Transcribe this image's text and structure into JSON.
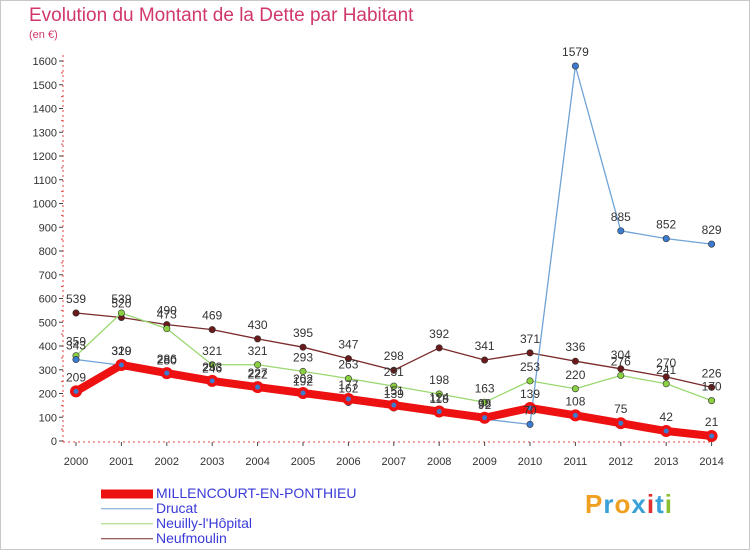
{
  "header": {
    "title": "Evolution du Montant de la Dette par Habitant",
    "subtitle": "(en €)"
  },
  "logo": {
    "letters": [
      "P",
      "r",
      "o",
      "x",
      "i",
      "t",
      "i"
    ],
    "colors": [
      "#f0a020",
      "#3aa0d8",
      "#f0a020",
      "#3aa0d8",
      "#e03030",
      "#3aa0d8",
      "#8ac030"
    ]
  },
  "chart_data": {
    "type": "line",
    "title": "Evolution du Montant de la Dette par Habitant",
    "ylabel": "(en €)",
    "xlabel": "",
    "x": [
      "2000",
      "2001",
      "2002",
      "2003",
      "2004",
      "2005",
      "2006",
      "2007",
      "2008",
      "2009",
      "2010",
      "2011",
      "2012",
      "2013",
      "2014"
    ],
    "ylim": [
      0,
      1600
    ],
    "yticks": [
      0,
      100,
      200,
      300,
      400,
      500,
      600,
      700,
      800,
      900,
      1000,
      1100,
      1200,
      1300,
      1400,
      1500,
      1600
    ],
    "grid": false,
    "legend_position": "bottom",
    "series": [
      {
        "name": "MILLENCOURT-EN-PONTHIEU",
        "color": "#ee1111",
        "marker_color": "#3b7bd0",
        "thick": true,
        "values": [
          209,
          320,
          286,
          253,
          227,
          202,
          177,
          151,
          124,
          98,
          139,
          108,
          75,
          42,
          21
        ]
      },
      {
        "name": "Drucat",
        "color": "#6fa3d6",
        "marker_color": "#3b7bd0",
        "thick": false,
        "values": [
          343,
          319,
          280,
          246,
          222,
          192,
          162,
          139,
          118,
          92,
          70,
          1579,
          885,
          852,
          829
        ]
      },
      {
        "name": "Neuilly-l'Hôpital",
        "color": "#9ad870",
        "marker_color": "#8ad040",
        "thick": false,
        "values": [
          359,
          539,
          473,
          321,
          321,
          293,
          263,
          231,
          198,
          163,
          253,
          220,
          276,
          241,
          170
        ]
      },
      {
        "name": "Neufmoulin",
        "color": "#7a2a2a",
        "marker_color": "#6a1a1a",
        "thick": false,
        "values": [
          539,
          520,
          490,
          469,
          430,
          395,
          347,
          298,
          392,
          341,
          371,
          336,
          304,
          270,
          226
        ]
      }
    ],
    "data_labels": [
      {
        "series": 0,
        "index": 0,
        "text": "209"
      },
      {
        "series": 0,
        "index": 1,
        "text": "320"
      },
      {
        "series": 0,
        "index": 2,
        "text": "286"
      },
      {
        "series": 0,
        "index": 3,
        "text": "253"
      },
      {
        "series": 0,
        "index": 4,
        "text": "227"
      },
      {
        "series": 0,
        "index": 5,
        "text": "202"
      },
      {
        "series": 0,
        "index": 6,
        "text": "177"
      },
      {
        "series": 0,
        "index": 7,
        "text": "151"
      },
      {
        "series": 0,
        "index": 8,
        "text": "124"
      },
      {
        "series": 0,
        "index": 9,
        "text": "98"
      },
      {
        "series": 0,
        "index": 10,
        "text": "139"
      },
      {
        "series": 0,
        "index": 11,
        "text": "108"
      },
      {
        "series": 0,
        "index": 12,
        "text": "75"
      },
      {
        "series": 0,
        "index": 13,
        "text": "42"
      },
      {
        "series": 0,
        "index": 14,
        "text": "21"
      },
      {
        "series": 1,
        "index": 0,
        "text": "343"
      },
      {
        "series": 1,
        "index": 1,
        "text": "319"
      },
      {
        "series": 1,
        "index": 2,
        "text": "280"
      },
      {
        "series": 1,
        "index": 3,
        "text": "246"
      },
      {
        "series": 1,
        "index": 4,
        "text": "222"
      },
      {
        "series": 1,
        "index": 5,
        "text": "192"
      },
      {
        "series": 1,
        "index": 6,
        "text": "162"
      },
      {
        "series": 1,
        "index": 7,
        "text": "139"
      },
      {
        "series": 1,
        "index": 8,
        "text": "118"
      },
      {
        "series": 1,
        "index": 9,
        "text": "92"
      },
      {
        "series": 1,
        "index": 10,
        "text": "70"
      },
      {
        "series": 1,
        "index": 11,
        "text": "1579"
      },
      {
        "series": 1,
        "index": 12,
        "text": "885"
      },
      {
        "series": 1,
        "index": 13,
        "text": "852"
      },
      {
        "series": 1,
        "index": 14,
        "text": "829"
      },
      {
        "series": 2,
        "index": 0,
        "text": "359"
      },
      {
        "series": 2,
        "index": 1,
        "text": "539"
      },
      {
        "series": 2,
        "index": 2,
        "text": "473"
      },
      {
        "series": 2,
        "index": 3,
        "text": "321"
      },
      {
        "series": 2,
        "index": 4,
        "text": "321"
      },
      {
        "series": 2,
        "index": 5,
        "text": "293"
      },
      {
        "series": 2,
        "index": 6,
        "text": "263"
      },
      {
        "series": 2,
        "index": 7,
        "text": "231"
      },
      {
        "series": 2,
        "index": 8,
        "text": "198"
      },
      {
        "series": 2,
        "index": 9,
        "text": "163"
      },
      {
        "series": 2,
        "index": 10,
        "text": "253"
      },
      {
        "series": 2,
        "index": 11,
        "text": "220"
      },
      {
        "series": 2,
        "index": 12,
        "text": "276"
      },
      {
        "series": 2,
        "index": 13,
        "text": "241"
      },
      {
        "series": 2,
        "index": 14,
        "text": "170"
      },
      {
        "series": 3,
        "index": 0,
        "text": "539"
      },
      {
        "series": 3,
        "index": 1,
        "text": "520"
      },
      {
        "series": 3,
        "index": 2,
        "text": "490"
      },
      {
        "series": 3,
        "index": 3,
        "text": "469"
      },
      {
        "series": 3,
        "index": 4,
        "text": "430"
      },
      {
        "series": 3,
        "index": 5,
        "text": "395"
      },
      {
        "series": 3,
        "index": 6,
        "text": "347"
      },
      {
        "series": 3,
        "index": 7,
        "text": "298"
      },
      {
        "series": 3,
        "index": 8,
        "text": "392"
      },
      {
        "series": 3,
        "index": 9,
        "text": "341"
      },
      {
        "series": 3,
        "index": 10,
        "text": "371"
      },
      {
        "series": 3,
        "index": 11,
        "text": "336"
      },
      {
        "series": 3,
        "index": 12,
        "text": "304"
      },
      {
        "series": 3,
        "index": 13,
        "text": "270"
      },
      {
        "series": 3,
        "index": 14,
        "text": "226"
      }
    ]
  }
}
